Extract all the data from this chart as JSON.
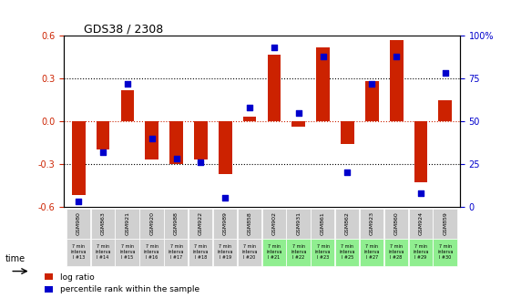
{
  "title": "GDS38 / 2308",
  "samples": [
    "GSM980",
    "GSM863",
    "GSM921",
    "GSM920",
    "GSM988",
    "GSM922",
    "GSM989",
    "GSM858",
    "GSM902",
    "GSM931",
    "GSM861",
    "GSM862",
    "GSM923",
    "GSM860",
    "GSM924",
    "GSM859"
  ],
  "time_labels": [
    "7 min\ninterva\nl #13",
    "7 min\ninterva\nl #14",
    "7 min\ninterva\nl #15",
    "7 min\ninterva\nl #16",
    "7 min\ninterva\nl #17",
    "7 min\ninterva\nl #18",
    "7 min\ninterva\nl #19",
    "7 min\ninterva\nl #20",
    "7 min\ninterva\nl #21",
    "7 min\ninterva\nl #22",
    "7 min\ninterva\nl #23",
    "7 min\ninterva\nl #25",
    "7 min\ninterva\nl #27",
    "7 min\ninterva\nl #28",
    "7 min\ninterva\nl #29",
    "7 min\ninterva\nl #30"
  ],
  "log_ratio": [
    -0.52,
    -0.2,
    0.22,
    -0.27,
    -0.3,
    -0.27,
    -0.37,
    0.03,
    0.47,
    -0.04,
    0.52,
    -0.16,
    0.28,
    0.57,
    -0.43,
    0.15
  ],
  "percentile": [
    3,
    32,
    72,
    40,
    28,
    26,
    5,
    58,
    93,
    55,
    88,
    20,
    72,
    88,
    8,
    78
  ],
  "bar_color": "#cc2200",
  "dot_color": "#0000cc",
  "bg_color_gray": "#d0d0d0",
  "bg_color_green": "#90ee90",
  "ylim": [
    -0.6,
    0.6
  ],
  "y2lim": [
    0,
    100
  ],
  "yticks": [
    -0.6,
    -0.3,
    0.0,
    0.3,
    0.6
  ],
  "y2ticks": [
    0,
    25,
    50,
    75,
    100
  ],
  "hlines": [
    -0.3,
    0.0,
    0.3
  ],
  "legend_log": "log ratio",
  "legend_pct": "percentile rank within the sample"
}
